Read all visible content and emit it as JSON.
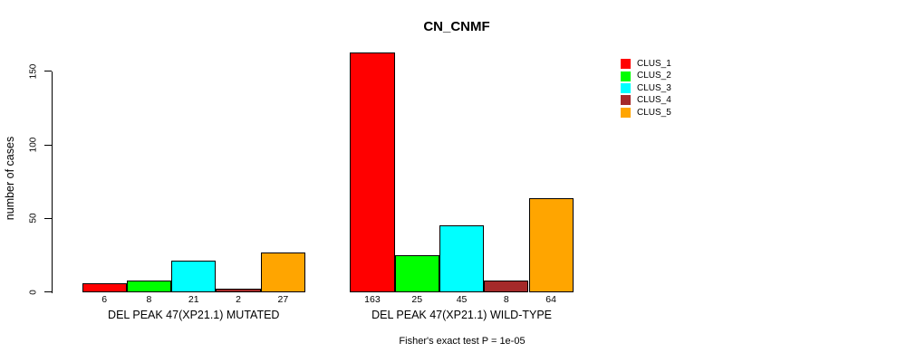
{
  "chart_data": {
    "type": "bar",
    "title": "CN_CNMF",
    "ylabel": "number of cases",
    "xlabel": "",
    "ylim": [
      0,
      163
    ],
    "yticks": [
      0,
      50,
      100,
      150
    ],
    "grid": false,
    "legend_position": "top-right",
    "bar_value_labels": true,
    "series": [
      {
        "name": "CLUS_1",
        "color": "#FF0000"
      },
      {
        "name": "CLUS_2",
        "color": "#00FF00"
      },
      {
        "name": "CLUS_3",
        "color": "#00FFFF"
      },
      {
        "name": "CLUS_4",
        "color": "#A52A2A"
      },
      {
        "name": "CLUS_5",
        "color": "#FFA500"
      }
    ],
    "groups": [
      {
        "label": "DEL PEAK 47(XP21.1) MUTATED",
        "values": [
          6,
          8,
          21,
          2,
          27
        ]
      },
      {
        "label": "DEL PEAK 47(XP21.1) WILD-TYPE",
        "values": [
          163,
          25,
          45,
          8,
          64
        ]
      }
    ],
    "annotation": "Fisher's exact test P = 1e-05"
  }
}
